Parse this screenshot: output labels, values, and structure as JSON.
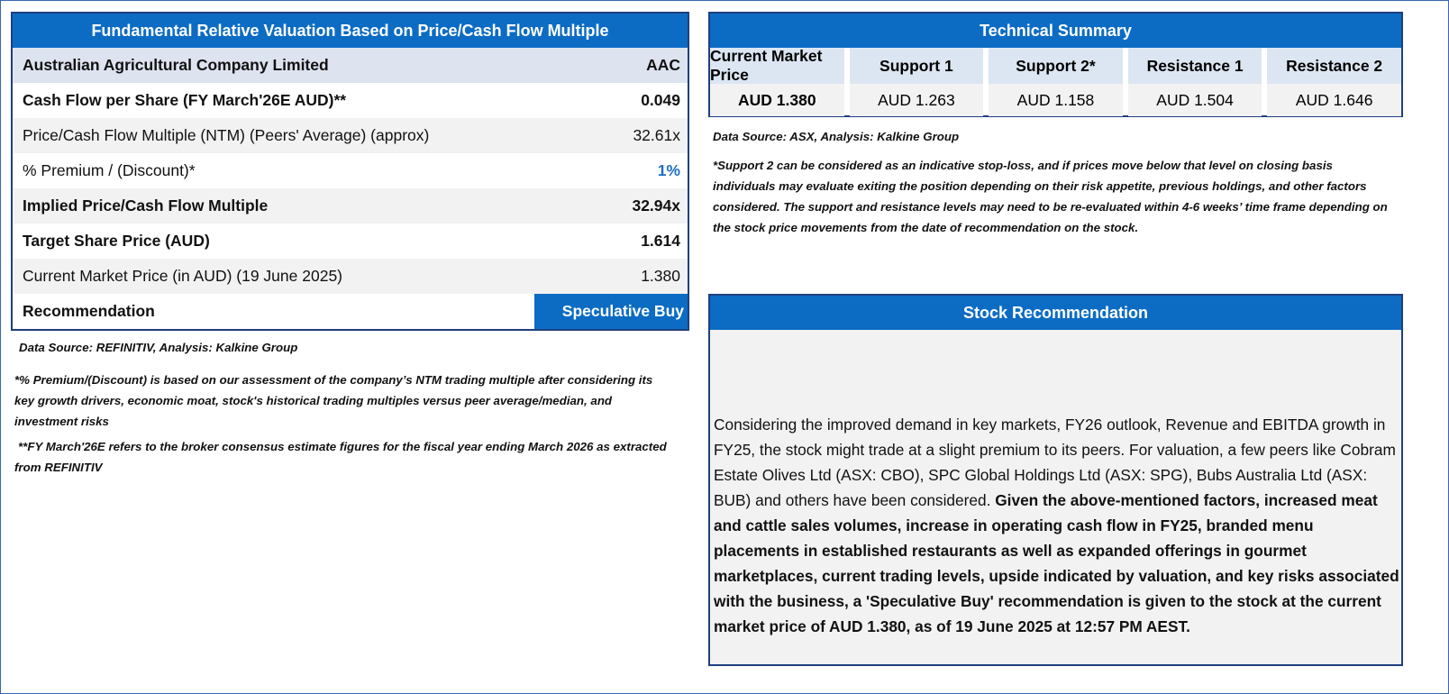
{
  "valuation": {
    "title": "Fundamental Relative Valuation Based on Price/Cash Flow Multiple",
    "company": "Australian Agricultural Company Limited",
    "ticker": "AAC",
    "rows": [
      [
        "Cash Flow per Share (FY March'26E AUD)**",
        "0.049"
      ],
      [
        "Price/Cash Flow Multiple (NTM)  (Peers' Average) (approx)",
        "32.61x"
      ],
      [
        "% Premium / (Discount)*",
        "1%"
      ],
      [
        "Implied Price/Cash Flow Multiple",
        "32.94x"
      ],
      [
        "Target Share Price (AUD)",
        "1.614"
      ],
      [
        "Current Market Price (in AUD) (19 June 2025)",
        "1.380"
      ]
    ],
    "recommendation_label": "Recommendation",
    "recommendation_value": "Speculative Buy",
    "source": "Data Source: REFINITIV, Analysis: Kalkine Group",
    "notes": [
      "*% Premium/(Discount) is based on our assessment of the company’s NTM trading multiple after considering its key growth drivers, economic moat, stock's historical trading multiples versus peer average/median, and investment risks",
      "**FY March'26E refers to the broker consensus estimate figures for the fiscal year ending March 2026  as extracted from REFINITIV"
    ]
  },
  "technical": {
    "title": "Technical Summary",
    "headers": [
      "Current Market Price",
      "Support 1",
      "Support 2*",
      "Resistance 1",
      "Resistance 2"
    ],
    "values": [
      "AUD 1.380",
      "AUD 1.263",
      "AUD 1.158",
      "AUD 1.504",
      "AUD 1.646"
    ],
    "source": "Data Source: ASX, Analysis: Kalkine Group",
    "note": "*Support 2 can be considered as an indicative stop-loss, and if prices move below that level on closing basis individuals may evaluate exiting the position depending on their risk appetite, previous holdings, and other factors considered. The support and resistance levels may need to be re-evaluated within 4-6 weeks’ time frame depending on the stock price movements from the date of recommendation on the stock."
  },
  "stock_recommendation": {
    "title": "Stock Recommendation",
    "text": "Considering the improved demand in key markets, FY26 outlook, Revenue and EBITDA growth in FY25, the stock might trade at a slight premium to its peers. For valuation, a few peers like Cobram Estate Olives Ltd (ASX: CBO), SPC Global Holdings Ltd (ASX: SPG), Bubs Australia Ltd (ASX: BUB) and others have been considered. ",
    "bold_text": "Given the above-mentioned factors, increased meat and cattle sales volumes, increase in operating cash flow in FY25, branded menu placements in established restaurants as well as expanded offerings in gourmet marketplaces, current trading levels, upside indicated by valuation, and key risks associated with the business, a 'Speculative Buy' recommendation is given to the stock at the current market price of AUD 1.380, as of 19 June 2025 at 12:57 PM AEST."
  }
}
